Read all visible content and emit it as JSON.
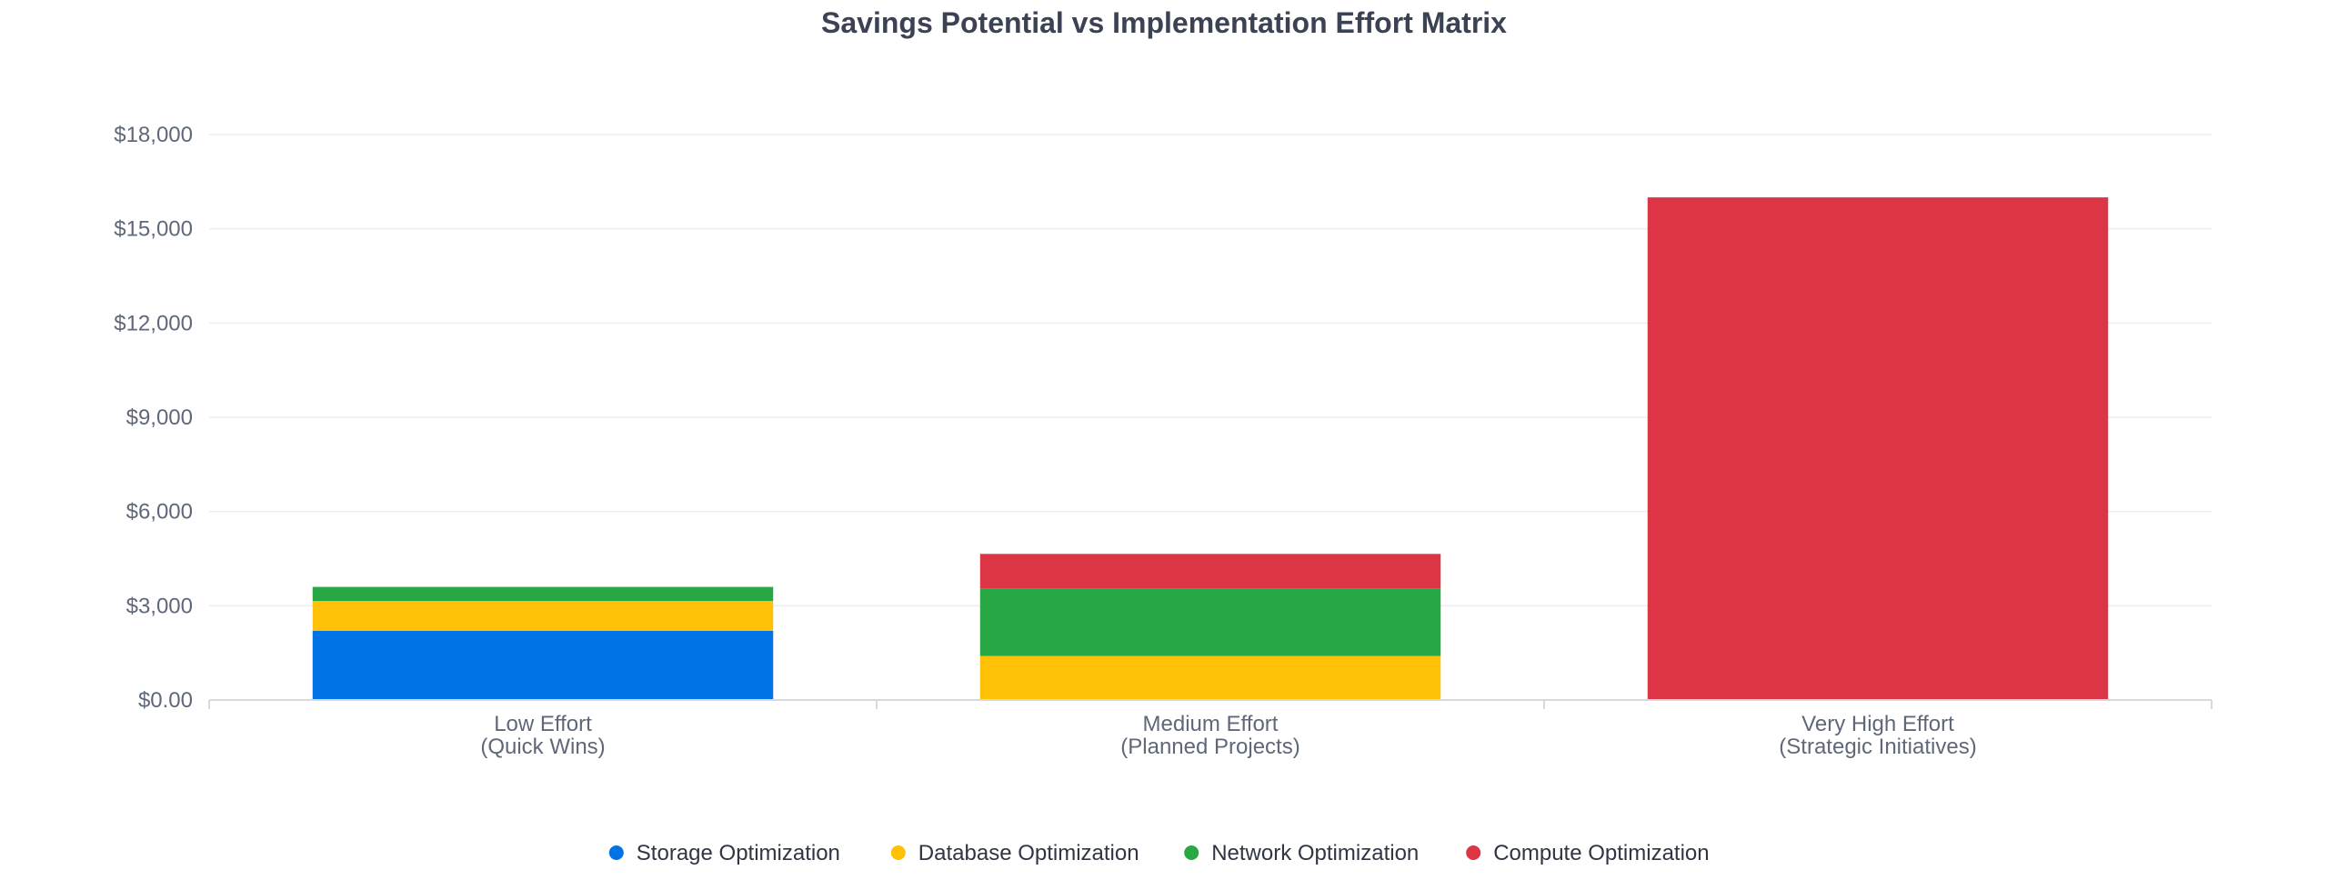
{
  "chart_data": {
    "type": "bar",
    "stacked": true,
    "title": "Savings Potential vs Implementation Effort Matrix",
    "xlabel": "",
    "ylabel": "",
    "categories": [
      [
        "Low Effort",
        "(Quick Wins)"
      ],
      [
        "Medium Effort",
        "(Planned Projects)"
      ],
      [
        "Very High Effort",
        "(Strategic Initiatives)"
      ]
    ],
    "series": [
      {
        "name": "Storage Optimization",
        "color": "#0073e6",
        "values": [
          2200,
          0,
          0
        ]
      },
      {
        "name": "Database Optimization",
        "color": "#ffc107",
        "values": [
          950,
          1400,
          0
        ]
      },
      {
        "name": "Network Optimization",
        "color": "#28a745",
        "values": [
          450,
          2150,
          0
        ]
      },
      {
        "name": "Compute Optimization",
        "color": "#dc3545",
        "values": [
          0,
          1100,
          16000
        ]
      }
    ],
    "ylim": [
      0,
      18000
    ],
    "yticks": [
      0,
      3000,
      6000,
      9000,
      12000,
      15000,
      18000
    ],
    "ytick_labels": [
      "$0.00",
      "$3,000",
      "$6,000",
      "$9,000",
      "$12,000",
      "$15,000",
      "$18,000"
    ],
    "grid": true,
    "legend_position": "bottom"
  }
}
